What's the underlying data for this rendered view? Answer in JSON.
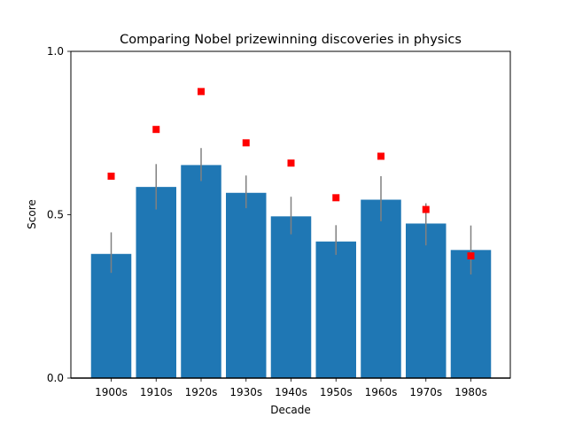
{
  "chart_data": {
    "type": "bar",
    "title": "Comparing Nobel prizewinning discoveries in physics",
    "xlabel": "Decade",
    "ylabel": "Score",
    "ylim": [
      0,
      1
    ],
    "yticks": [
      0,
      0.5,
      1
    ],
    "ytick_labels": [
      "0.0",
      "0.5",
      "1.0"
    ],
    "categories": [
      "1900s",
      "1910s",
      "1920s",
      "1930s",
      "1940s",
      "1950s",
      "1960s",
      "1970s",
      "1980s"
    ],
    "series": [
      {
        "type": "bar",
        "values": [
          0.38,
          0.585,
          0.652,
          0.567,
          0.495,
          0.418,
          0.546,
          0.473,
          0.392
        ],
        "error_low": [
          0.322,
          0.516,
          0.603,
          0.52,
          0.44,
          0.377,
          0.48,
          0.406,
          0.317
        ],
        "error_high": [
          0.446,
          0.655,
          0.704,
          0.62,
          0.555,
          0.468,
          0.618,
          0.535,
          0.467
        ]
      },
      {
        "type": "marker",
        "values": [
          0.618,
          0.761,
          0.877,
          0.72,
          0.658,
          0.552,
          0.679,
          0.516,
          0.374
        ]
      }
    ],
    "colors": {
      "bar": "#1f77b4",
      "errorbar": "#808080",
      "marker": "#ff0000"
    },
    "grid": false,
    "legend": "none"
  }
}
